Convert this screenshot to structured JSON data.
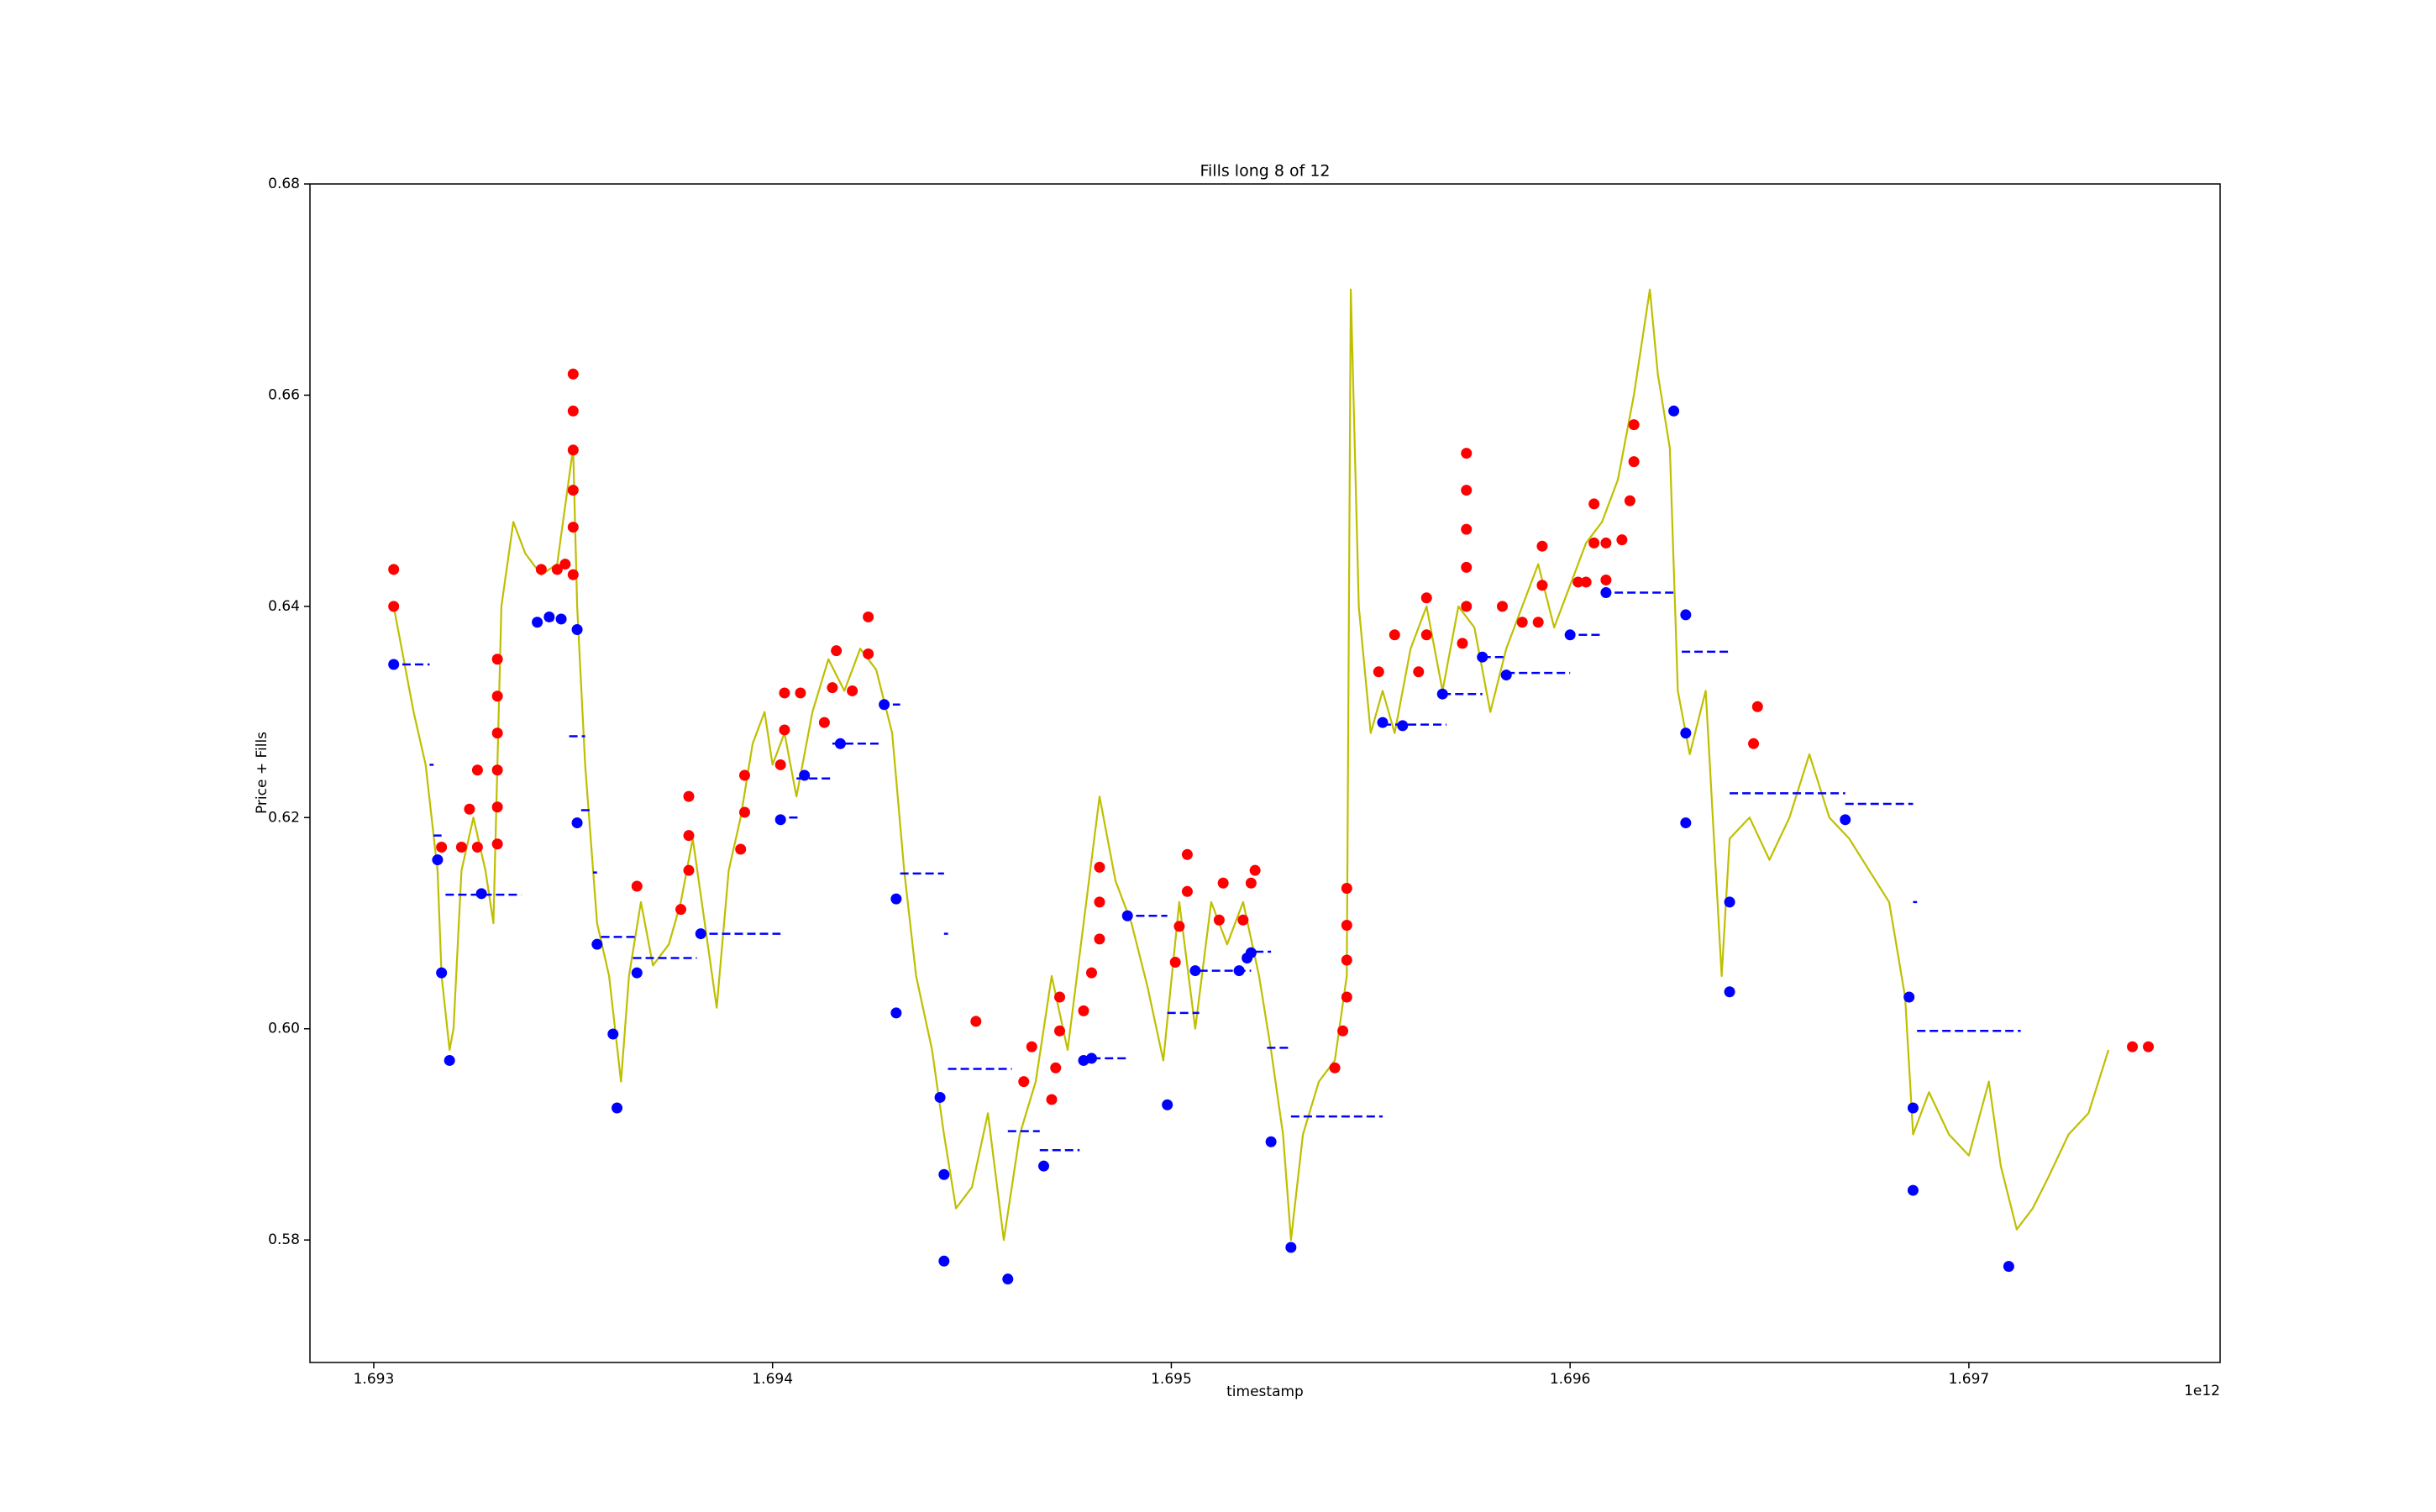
{
  "chart_data": {
    "type": "line",
    "title": "Fills long 8 of 12",
    "x_label": "timestamp",
    "y_label": "Price + Fills",
    "x_offset_label": "1e12",
    "xlim": [
      1692840000000.0,
      1697630000000.0
    ],
    "ylim": [
      0.5684,
      0.68
    ],
    "xticks": [
      {
        "value": 1693000000000.0,
        "label": "1.693"
      },
      {
        "value": 1694000000000.0,
        "label": "1.694"
      },
      {
        "value": 1695000000000.0,
        "label": "1.695"
      },
      {
        "value": 1696000000000.0,
        "label": "1.696"
      },
      {
        "value": 1697000000000.0,
        "label": "1.697"
      }
    ],
    "yticks": [
      0.58,
      {
        "value": 0.6,
        "label": "0.60"
      },
      0.62,
      0.64,
      0.66,
      0.68
    ],
    "series": [
      {
        "type": "line",
        "color": "#bfbf00",
        "x": [
          1693050000000.0,
          1693070000000.0,
          1693100000000.0,
          1693130000000.0,
          1693160000000.0,
          1693170000000.0,
          1693190000000.0,
          1693200000000.0,
          1693220000000.0,
          1693250000000.0,
          1693280000000.0,
          1693300000000.0,
          1693320000000.0,
          1693350000000.0,
          1693380000000.0,
          1693420000000.0,
          1693460000000.0,
          1693500000000.0,
          1693510000000.0,
          1693530000000.0,
          1693560000000.0,
          1693590000000.0,
          1693620000000.0,
          1693640000000.0,
          1693670000000.0,
          1693700000000.0,
          1693740000000.0,
          1693770000000.0,
          1693800000000.0,
          1693830000000.0,
          1693860000000.0,
          1693890000000.0,
          1693920000000.0,
          1693950000000.0,
          1693980000000.0,
          1694000000000.0,
          1694030000000.0,
          1694060000000.0,
          1694100000000.0,
          1694140000000.0,
          1694180000000.0,
          1694220000000.0,
          1694260000000.0,
          1694300000000.0,
          1694330000000.0,
          1694360000000.0,
          1694400000000.0,
          1694430000000.0,
          1694460000000.0,
          1694500000000.0,
          1694540000000.0,
          1694580000000.0,
          1694620000000.0,
          1694660000000.0,
          1694700000000.0,
          1694740000000.0,
          1694780000000.0,
          1694820000000.0,
          1694860000000.0,
          1694900000000.0,
          1694940000000.0,
          1694980000000.0,
          1695020000000.0,
          1695060000000.0,
          1695100000000.0,
          1695140000000.0,
          1695180000000.0,
          1695220000000.0,
          1695250000000.0,
          1695280000000.0,
          1695300000000.0,
          1695330000000.0,
          1695370000000.0,
          1695410000000.0,
          1695440000000.0,
          1695450000000.0,
          1695470000000.0,
          1695500000000.0,
          1695530000000.0,
          1695560000000.0,
          1695600000000.0,
          1695640000000.0,
          1695680000000.0,
          1695720000000.0,
          1695760000000.0,
          1695800000000.0,
          1695840000000.0,
          1695880000000.0,
          1695920000000.0,
          1695960000000.0,
          1696000000000.0,
          1696040000000.0,
          1696080000000.0,
          1696120000000.0,
          1696160000000.0,
          1696200000000.0,
          1696220000000.0,
          1696250000000.0,
          1696270000000.0,
          1696300000000.0,
          1696340000000.0,
          1696380000000.0,
          1696400000000.0,
          1696450000000.0,
          1696500000000.0,
          1696550000000.0,
          1696600000000.0,
          1696650000000.0,
          1696700000000.0,
          1696750000000.0,
          1696800000000.0,
          1696840000000.0,
          1696860000000.0,
          1696900000000.0,
          1696950000000.0,
          1697000000000.0,
          1697050000000.0,
          1697080000000.0,
          1697120000000.0,
          1697160000000.0,
          1697200000000.0,
          1697250000000.0,
          1697300000000.0,
          1697350000000.0
        ],
        "values": [
          0.64,
          0.636,
          0.63,
          0.625,
          0.615,
          0.605,
          0.598,
          0.6,
          0.615,
          0.62,
          0.615,
          0.61,
          0.64,
          0.648,
          0.645,
          0.643,
          0.644,
          0.655,
          0.64,
          0.625,
          0.61,
          0.605,
          0.595,
          0.605,
          0.612,
          0.606,
          0.608,
          0.612,
          0.618,
          0.61,
          0.602,
          0.615,
          0.62,
          0.627,
          0.63,
          0.625,
          0.628,
          0.622,
          0.63,
          0.635,
          0.632,
          0.636,
          0.634,
          0.628,
          0.615,
          0.605,
          0.598,
          0.59,
          0.583,
          0.585,
          0.592,
          0.58,
          0.59,
          0.595,
          0.605,
          0.598,
          0.61,
          0.622,
          0.614,
          0.61,
          0.604,
          0.597,
          0.612,
          0.6,
          0.612,
          0.608,
          0.612,
          0.605,
          0.598,
          0.59,
          0.58,
          0.59,
          0.595,
          0.597,
          0.605,
          0.67,
          0.64,
          0.628,
          0.632,
          0.628,
          0.636,
          0.64,
          0.632,
          0.64,
          0.638,
          0.63,
          0.636,
          0.64,
          0.644,
          0.638,
          0.642,
          0.646,
          0.648,
          0.652,
          0.66,
          0.67,
          0.662,
          0.655,
          0.632,
          0.626,
          0.632,
          0.605,
          0.618,
          0.62,
          0.616,
          0.62,
          0.626,
          0.62,
          0.618,
          0.615,
          0.612,
          0.603,
          0.59,
          0.594,
          0.59,
          0.588,
          0.595,
          0.587,
          0.581,
          0.583,
          0.586,
          0.59,
          0.592,
          0.598
        ]
      },
      {
        "type": "scatter",
        "color": "#ff0000",
        "x": [
          1693050000000.0,
          1693050000000.0,
          1693170000000.0,
          1693220000000.0,
          1693240000000.0,
          1693260000000.0,
          1693260000000.0,
          1693310000000.0,
          1693310000000.0,
          1693310000000.0,
          1693310000000.0,
          1693310000000.0,
          1693310000000.0,
          1693420000000.0,
          1693460000000.0,
          1693480000000.0,
          1693500000000.0,
          1693500000000.0,
          1693500000000.0,
          1693500000000.0,
          1693500000000.0,
          1693500000000.0,
          1693660000000.0,
          1693770000000.0,
          1693790000000.0,
          1693790000000.0,
          1693790000000.0,
          1693920000000.0,
          1693930000000.0,
          1693930000000.0,
          1694020000000.0,
          1694030000000.0,
          1694030000000.0,
          1694070000000.0,
          1694130000000.0,
          1694150000000.0,
          1694160000000.0,
          1694200000000.0,
          1694240000000.0,
          1694240000000.0,
          1694510000000.0,
          1694630000000.0,
          1694650000000.0,
          1694700000000.0,
          1694710000000.0,
          1694720000000.0,
          1694720000000.0,
          1694780000000.0,
          1694800000000.0,
          1694820000000.0,
          1694820000000.0,
          1694820000000.0,
          1695010000000.0,
          1695020000000.0,
          1695040000000.0,
          1695040000000.0,
          1695120000000.0,
          1695130000000.0,
          1695180000000.0,
          1695200000000.0,
          1695210000000.0,
          1695410000000.0,
          1695430000000.0,
          1695440000000.0,
          1695440000000.0,
          1695440000000.0,
          1695440000000.0,
          1695520000000.0,
          1695560000000.0,
          1695620000000.0,
          1695640000000.0,
          1695640000000.0,
          1695730000000.0,
          1695740000000.0,
          1695740000000.0,
          1695740000000.0,
          1695740000000.0,
          1695740000000.0,
          1695830000000.0,
          1695880000000.0,
          1695920000000.0,
          1695930000000.0,
          1695930000000.0,
          1696020000000.0,
          1696040000000.0,
          1696060000000.0,
          1696060000000.0,
          1696090000000.0,
          1696090000000.0,
          1696130000000.0,
          1696150000000.0,
          1696160000000.0,
          1696160000000.0,
          1696460000000.0,
          1696470000000.0,
          1697410000000.0,
          1697450000000.0
        ],
        "values": [
          0.64,
          0.6435,
          0.6172,
          0.6172,
          0.6208,
          0.6172,
          0.6245,
          0.6175,
          0.621,
          0.6245,
          0.628,
          0.6315,
          0.635,
          0.6435,
          0.6435,
          0.644,
          0.6475,
          0.651,
          0.6548,
          0.6585,
          0.662,
          0.643,
          0.6135,
          0.6113,
          0.615,
          0.6183,
          0.622,
          0.617,
          0.6205,
          0.624,
          0.625,
          0.6283,
          0.6318,
          0.6318,
          0.629,
          0.6323,
          0.6358,
          0.632,
          0.6355,
          0.639,
          0.6007,
          0.595,
          0.5983,
          0.5933,
          0.5963,
          0.5998,
          0.603,
          0.6017,
          0.6053,
          0.6085,
          0.612,
          0.6153,
          0.6063,
          0.6097,
          0.613,
          0.6165,
          0.6103,
          0.6138,
          0.6103,
          0.6138,
          0.615,
          0.5963,
          0.5998,
          0.603,
          0.6065,
          0.6098,
          0.6133,
          0.6338,
          0.6373,
          0.6338,
          0.6373,
          0.6408,
          0.6365,
          0.64,
          0.6437,
          0.6473,
          0.651,
          0.6545,
          0.64,
          0.6385,
          0.6385,
          0.642,
          0.6457,
          0.6423,
          0.6423,
          0.646,
          0.6497,
          0.6425,
          0.646,
          0.6463,
          0.65,
          0.6537,
          0.6572,
          0.627,
          0.6305,
          0.5983,
          0.5983
        ]
      },
      {
        "type": "scatter",
        "color": "#0000ff",
        "x": [
          1693050000000.0,
          1693160000000.0,
          1693170000000.0,
          1693190000000.0,
          1693270000000.0,
          1693410000000.0,
          1693440000000.0,
          1693470000000.0,
          1693510000000.0,
          1693510000000.0,
          1693560000000.0,
          1693600000000.0,
          1693610000000.0,
          1693660000000.0,
          1693820000000.0,
          1694020000000.0,
          1694080000000.0,
          1694170000000.0,
          1694280000000.0,
          1694310000000.0,
          1694310000000.0,
          1694420000000.0,
          1694430000000.0,
          1694430000000.0,
          1694590000000.0,
          1694680000000.0,
          1694780000000.0,
          1694800000000.0,
          1694890000000.0,
          1694990000000.0,
          1695060000000.0,
          1695170000000.0,
          1695190000000.0,
          1695200000000.0,
          1695250000000.0,
          1695300000000.0,
          1695530000000.0,
          1695580000000.0,
          1695680000000.0,
          1695780000000.0,
          1695840000000.0,
          1696000000000.0,
          1696090000000.0,
          1696260000000.0,
          1696290000000.0,
          1696290000000.0,
          1696290000000.0,
          1696400000000.0,
          1696400000000.0,
          1696690000000.0,
          1696850000000.0,
          1696860000000.0,
          1696860000000.0,
          1697100000000.0
        ],
        "values": [
          0.6345,
          0.616,
          0.6053,
          0.597,
          0.6128,
          0.6385,
          0.639,
          0.6388,
          0.6378,
          0.6195,
          0.608,
          0.5995,
          0.5925,
          0.6053,
          0.609,
          0.6198,
          0.624,
          0.627,
          0.6307,
          0.6123,
          0.6015,
          0.5935,
          0.5862,
          0.578,
          0.5763,
          0.587,
          0.597,
          0.5972,
          0.6107,
          0.5928,
          0.6055,
          0.6055,
          0.6067,
          0.6072,
          0.5893,
          0.5793,
          0.629,
          0.6287,
          0.6317,
          0.6352,
          0.6335,
          0.6373,
          0.6413,
          0.6585,
          0.6392,
          0.628,
          0.6195,
          0.612,
          0.6035,
          0.6198,
          0.603,
          0.5925,
          0.5847,
          0.5775
        ]
      },
      {
        "type": "hlines",
        "color": "#0000ff",
        "values": [
          0.6345,
          0.625,
          0.6183,
          0.6127,
          0.6387,
          0.6277,
          0.6207,
          0.6148,
          0.6087,
          0.6067,
          0.609,
          0.62,
          0.6237,
          0.627,
          0.6307,
          0.6147,
          0.609,
          0.5962,
          0.5903,
          0.5885,
          0.5972,
          0.6107,
          0.6015,
          0.6055,
          0.6073,
          0.5982,
          0.5917,
          0.6288,
          0.6317,
          0.6352,
          0.6337,
          0.6373,
          0.6413,
          0.6585,
          0.6357,
          0.6223,
          0.6213,
          0.612,
          0.5998
        ],
        "xmin": [
          1693040000000.0,
          1693140000000.0,
          1693150000000.0,
          1693180000000.0,
          1693430000000.0,
          1693490000000.0,
          1693520000000.0,
          1693550000000.0,
          1693570000000.0,
          1693650000000.0,
          1693810000000.0,
          1694010000000.0,
          1694060000000.0,
          1694150000000.0,
          1694270000000.0,
          1694320000000.0,
          1694430000000.0,
          1694440000000.0,
          1694590000000.0,
          1694670000000.0,
          1694770000000.0,
          1694880000000.0,
          1694990000000.0,
          1695070000000.0,
          1695210000000.0,
          1695240000000.0,
          1695300000000.0,
          1695530000000.0,
          1695680000000.0,
          1695780000000.0,
          1695840000000.0,
          1695990000000.0,
          1696080000000.0,
          1696250000000.0,
          1696280000000.0,
          1696400000000.0,
          1696690000000.0,
          1696860000000.0,
          1696870000000.0
        ],
        "xmax": [
          1693140000000.0,
          1693150000000.0,
          1693170000000.0,
          1693370000000.0,
          1693480000000.0,
          1693530000000.0,
          1693550000000.0,
          1693560000000.0,
          1693660000000.0,
          1693810000000.0,
          1694020000000.0,
          1694070000000.0,
          1694150000000.0,
          1694270000000.0,
          1694320000000.0,
          1694430000000.0,
          1694440000000.0,
          1694600000000.0,
          1694670000000.0,
          1694770000000.0,
          1694890000000.0,
          1694990000000.0,
          1695070000000.0,
          1695200000000.0,
          1695250000000.0,
          1695300000000.0,
          1695530000000.0,
          1695690000000.0,
          1695780000000.0,
          1695840000000.0,
          1696000000000.0,
          1696080000000.0,
          1696260000000.0,
          1696270000000.0,
          1696400000000.0,
          1696690000000.0,
          1696860000000.0,
          1696870000000.0,
          1697130000000.0
        ]
      }
    ]
  }
}
